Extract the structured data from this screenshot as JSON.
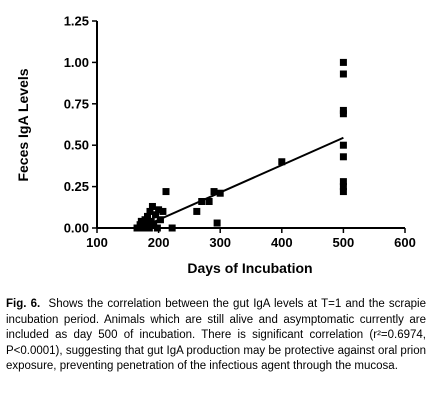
{
  "chart_data": {
    "type": "scatter",
    "xlabel": "Days of Incubation",
    "ylabel": "Feces IgA Levels",
    "xlim": [
      100,
      600
    ],
    "ylim": [
      0,
      1.25
    ],
    "x_ticks": [
      100,
      200,
      300,
      400,
      500,
      600
    ],
    "x_tick_labels": [
      "100",
      "200",
      "300",
      "400",
      "500",
      "600"
    ],
    "y_ticks": [
      0,
      0.25,
      0.5,
      0.75,
      1.0,
      1.25
    ],
    "y_tick_labels": [
      "0.00",
      "0.25",
      "0.50",
      "0.75",
      "1.00",
      "1.25"
    ],
    "marker": "square",
    "marker_color": "#000000",
    "points": [
      {
        "x": 165,
        "y": 0.0
      },
      {
        "x": 170,
        "y": 0.02
      },
      {
        "x": 172,
        "y": 0.04
      },
      {
        "x": 175,
        "y": 0.0
      },
      {
        "x": 178,
        "y": 0.05
      },
      {
        "x": 180,
        "y": 0.02
      },
      {
        "x": 182,
        "y": 0.07
      },
      {
        "x": 185,
        "y": 0.0
      },
      {
        "x": 186,
        "y": 0.1
      },
      {
        "x": 188,
        "y": 0.04
      },
      {
        "x": 190,
        "y": 0.13
      },
      {
        "x": 192,
        "y": 0.02
      },
      {
        "x": 195,
        "y": 0.08
      },
      {
        "x": 198,
        "y": 0.0
      },
      {
        "x": 200,
        "y": 0.11
      },
      {
        "x": 203,
        "y": 0.05
      },
      {
        "x": 207,
        "y": 0.1
      },
      {
        "x": 212,
        "y": 0.22
      },
      {
        "x": 222,
        "y": 0.0
      },
      {
        "x": 262,
        "y": 0.1
      },
      {
        "x": 270,
        "y": 0.16
      },
      {
        "x": 282,
        "y": 0.16
      },
      {
        "x": 290,
        "y": 0.22
      },
      {
        "x": 295,
        "y": 0.03
      },
      {
        "x": 300,
        "y": 0.21
      },
      {
        "x": 400,
        "y": 0.4
      },
      {
        "x": 500,
        "y": 1.0
      },
      {
        "x": 500,
        "y": 0.93
      },
      {
        "x": 500,
        "y": 0.71
      },
      {
        "x": 500,
        "y": 0.69
      },
      {
        "x": 500,
        "y": 0.5
      },
      {
        "x": 500,
        "y": 0.43
      },
      {
        "x": 500,
        "y": 0.28
      },
      {
        "x": 500,
        "y": 0.25
      },
      {
        "x": 500,
        "y": 0.22
      }
    ],
    "regression_line": {
      "x": [
        170,
        500
      ],
      "y": [
        0.0,
        0.545
      ]
    }
  },
  "caption": {
    "label": "Fig. 6.",
    "text": "Shows the correlation between the gut IgA levels at T=1 and the scrapie incubation period. Animals which are still alive and asymptomatic currently are included as day 500 of incubation. There is significant correlation (r²=0.6974, P<0.0001), suggesting that gut IgA production may be protective against oral prion exposure, preventing penetration of the infectious agent through the mucosa."
  }
}
